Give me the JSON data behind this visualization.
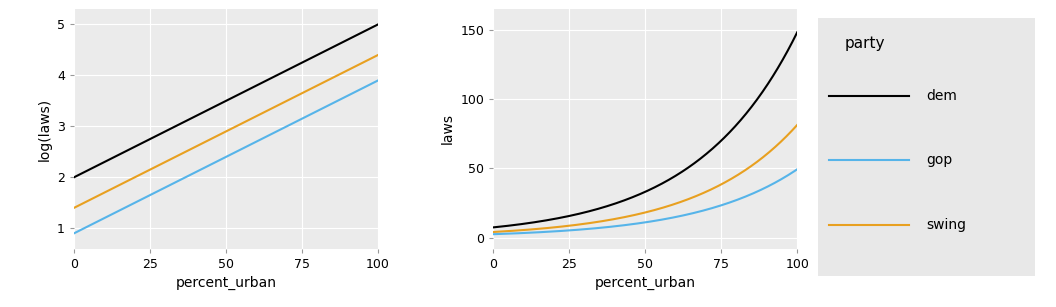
{
  "left": {
    "xlabel": "percent_urban",
    "ylabel": "log(laws)",
    "xlim": [
      0,
      100
    ],
    "ylim": [
      0.6,
      5.3
    ],
    "yticks": [
      1,
      2,
      3,
      4,
      5
    ],
    "xticks": [
      0,
      25,
      50,
      75,
      100
    ],
    "lines": {
      "dem": {
        "intercept": 2.0,
        "slope": 0.03,
        "color": "#000000"
      },
      "swing": {
        "intercept": 1.4,
        "slope": 0.03,
        "color": "#E8A020"
      },
      "gop": {
        "intercept": 0.9,
        "slope": 0.03,
        "color": "#56B4E9"
      }
    }
  },
  "right": {
    "xlabel": "percent_urban",
    "ylabel": "laws",
    "xlim": [
      0,
      100
    ],
    "ylim": [
      -8,
      165
    ],
    "yticks": [
      0,
      50,
      100,
      150
    ],
    "xticks": [
      0,
      25,
      50,
      75,
      100
    ],
    "lines": {
      "dem": {
        "intercept": 2.0,
        "slope": 0.03,
        "color": "#000000"
      },
      "swing": {
        "intercept": 1.4,
        "slope": 0.03,
        "color": "#E8A020"
      },
      "gop": {
        "intercept": 0.9,
        "slope": 0.03,
        "color": "#56B4E9"
      }
    }
  },
  "legend": {
    "title": "party",
    "entries": [
      "dem",
      "gop",
      "swing"
    ],
    "colors": [
      "#000000",
      "#56B4E9",
      "#E8A020"
    ]
  },
  "panel_bg": "#EBEBEB",
  "legend_bg": "#E8E8E8",
  "grid_color": "#FFFFFF",
  "line_width": 1.5,
  "axis_label_fontsize": 10,
  "tick_fontsize": 9,
  "legend_title_fontsize": 11,
  "legend_label_fontsize": 10
}
